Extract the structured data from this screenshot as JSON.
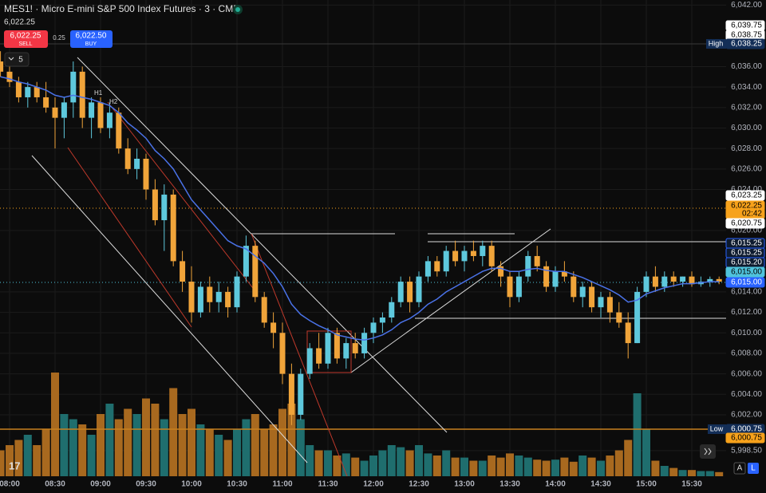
{
  "toolbar": {
    "symbol": "MES1! · Micro E-mini S&P 500 Index Futures · 3 · CME",
    "last": "6,022.25",
    "sell_price": "6,022.25",
    "sell": "SELL",
    "spread": "0.25",
    "buy_price": "6,022.50",
    "buy": "BUY",
    "indicators": "5",
    "buttons": [
      "A",
      "L"
    ]
  },
  "annotations": [
    "H1",
    "H2"
  ],
  "price_tags": [
    {
      "label": "6,039.75",
      "color": "#ffffff"
    },
    {
      "label": "6,038.75",
      "color": "#ffffff"
    },
    {
      "label": "6,038.25",
      "color": "#132e57"
    },
    {
      "label": "6,023.25",
      "color": "#ffffff"
    },
    {
      "label": "6,022.25",
      "color": "#f7a21b"
    },
    {
      "label": "02:42",
      "color": "#f7a21b"
    },
    {
      "label": "6,020.75",
      "color": "#ffffff"
    },
    {
      "label": "6,015.25",
      "color": "#0d1a2e"
    },
    {
      "label": "6,015.25",
      "color": "#0d1a2e"
    },
    {
      "label": "6,015.20",
      "color": "#0d1a2e"
    },
    {
      "label": "6,015.00",
      "color": "#4fc3dc"
    },
    {
      "label": "6,015.00",
      "color": "#2962ff"
    },
    {
      "label": "6,000.75",
      "color": "#132e57"
    },
    {
      "label": "6,000.75",
      "color": "#f7a21b"
    }
  ],
  "extreme_tags": [
    "High",
    "Low"
  ],
  "chart_data": {
    "type": "candlestick",
    "up_color": "#5ec8dc",
    "down_color": "#f0a43a",
    "volume_up_color": "#1f6e6e",
    "volume_down_color": "#a8691f",
    "ma_color": "#4a72e8",
    "ylim": [
      5996,
      6042.5
    ],
    "yticks": [
      {
        "value": 6042,
        "label": "6,042.00"
      },
      {
        "value": 6036,
        "label": "6,036.00"
      },
      {
        "value": 6034,
        "label": "6,034.00"
      },
      {
        "value": 6032,
        "label": "6,032.00"
      },
      {
        "value": 6030,
        "label": "6,030.00"
      },
      {
        "value": 6028,
        "label": "6,028.00"
      },
      {
        "value": 6026,
        "label": "6,026.00"
      },
      {
        "value": 6024,
        "label": "6,024.00"
      },
      {
        "value": 6020,
        "label": "6,020.00"
      },
      {
        "value": 6014,
        "label": "6,014.00"
      },
      {
        "value": 6012,
        "label": "6,012.00"
      },
      {
        "value": 6010,
        "label": "6,010.00"
      },
      {
        "value": 6008,
        "label": "6,008.00"
      },
      {
        "value": 6006,
        "label": "6,006.00"
      },
      {
        "value": 6004,
        "label": "6,004.00"
      },
      {
        "value": 6002,
        "label": "6,002.00"
      },
      {
        "value": 5998.5,
        "label": "5,998.50"
      }
    ],
    "vlim": [
      0,
      100
    ],
    "categories": [
      null,
      "08:00",
      null,
      null,
      null,
      null,
      "08:30",
      null,
      null,
      null,
      null,
      "09:00",
      null,
      null,
      null,
      null,
      "09:30",
      null,
      null,
      null,
      null,
      "10:00",
      null,
      null,
      null,
      null,
      "10:30",
      null,
      null,
      null,
      null,
      "11:00",
      null,
      null,
      null,
      null,
      "11:30",
      null,
      null,
      null,
      null,
      "12:00",
      null,
      null,
      null,
      null,
      "12:30",
      null,
      null,
      null,
      null,
      "13:00",
      null,
      null,
      null,
      null,
      "13:30",
      null,
      null,
      null,
      null,
      "14:00",
      null,
      null,
      null,
      null,
      "14:30",
      null,
      null,
      null,
      null,
      "15:00",
      null,
      null,
      null,
      null,
      "15:30",
      null,
      null,
      null
    ],
    "ohlc": [
      [
        6036.5,
        6037.5,
        6035,
        6035.5
      ],
      [
        6035.5,
        6036,
        6034,
        6034.5
      ],
      [
        6034.5,
        6035,
        6032.5,
        6033
      ],
      [
        6033,
        6034.5,
        6032,
        6034
      ],
      [
        6034,
        6034.5,
        6032.5,
        6033
      ],
      [
        6033,
        6034.5,
        6031.5,
        6032
      ],
      [
        6032,
        6033,
        6028,
        6031
      ],
      [
        6031,
        6033,
        6029,
        6032.5
      ],
      [
        6032.5,
        6036.5,
        6031,
        6035.5
      ],
      [
        6035.5,
        6036,
        6030,
        6031
      ],
      [
        6031,
        6033,
        6029,
        6032.5
      ],
      [
        6032.5,
        6033,
        6029.5,
        6030
      ],
      [
        6030,
        6032.5,
        6029,
        6031.5
      ],
      [
        6031.5,
        6032,
        6027.5,
        6028
      ],
      [
        6028,
        6029,
        6025.5,
        6026
      ],
      [
        6026,
        6028,
        6025,
        6027
      ],
      [
        6027,
        6027.5,
        6023,
        6024
      ],
      [
        6024,
        6025,
        6020.5,
        6021
      ],
      [
        6021,
        6024.5,
        6018,
        6023.5
      ],
      [
        6023.5,
        6024,
        6016.5,
        6017
      ],
      [
        6017,
        6018,
        6014,
        6015
      ],
      [
        6015,
        6016.5,
        6011,
        6012
      ],
      [
        6012,
        6015,
        6011.5,
        6014.5
      ],
      [
        6014.5,
        6015.5,
        6012,
        6013
      ],
      [
        6013,
        6015,
        6012,
        6014
      ],
      [
        6014,
        6014.5,
        6011.5,
        6012.5
      ],
      [
        6012.5,
        6016,
        6012,
        6015.5
      ],
      [
        6015.5,
        6019.5,
        6015,
        6018.5
      ],
      [
        6018.5,
        6019,
        6013,
        6013.5
      ],
      [
        6013.5,
        6014,
        6010.5,
        6011
      ],
      [
        6011,
        6012,
        6008.5,
        6010
      ],
      [
        6010,
        6011,
        6005,
        6006
      ],
      [
        6006,
        6007,
        6001,
        6002
      ],
      [
        6002,
        6006.5,
        6001.5,
        6006
      ],
      [
        6006,
        6009,
        6005.5,
        6008.5
      ],
      [
        6008.5,
        6010,
        6006.5,
        6007
      ],
      [
        6007,
        6010.5,
        6006.5,
        6010
      ],
      [
        6010,
        6010.5,
        6007,
        6007.5
      ],
      [
        6007.5,
        6009.5,
        6006.5,
        6009
      ],
      [
        6009,
        6010,
        6007.5,
        6008
      ],
      [
        6008,
        6010.5,
        6007.5,
        6010
      ],
      [
        6010,
        6011.5,
        6009,
        6011
      ],
      [
        6011,
        6012,
        6010,
        6011.5
      ],
      [
        6011.5,
        6013.5,
        6011,
        6013
      ],
      [
        6013,
        6015.5,
        6012.5,
        6015
      ],
      [
        6015,
        6015.5,
        6012,
        6013
      ],
      [
        6013,
        6016,
        6012.5,
        6015.5
      ],
      [
        6015.5,
        6017.5,
        6015,
        6017
      ],
      [
        6017,
        6017.5,
        6015.5,
        6016
      ],
      [
        6016,
        6018.5,
        6015.5,
        6018
      ],
      [
        6018,
        6019,
        6016.5,
        6017
      ],
      [
        6017,
        6018.5,
        6016,
        6018
      ],
      [
        6018,
        6019,
        6017,
        6017.5
      ],
      [
        6017.5,
        6019,
        6016.5,
        6018.5
      ],
      [
        6018.5,
        6019,
        6016,
        6016.5
      ],
      [
        6016.5,
        6017,
        6014.5,
        6015.5
      ],
      [
        6015.5,
        6016,
        6012.5,
        6013.5
      ],
      [
        6013.5,
        6016,
        6013,
        6015.5
      ],
      [
        6015.5,
        6018,
        6015,
        6017.5
      ],
      [
        6017.5,
        6018.5,
        6016,
        6016.5
      ],
      [
        6016.5,
        6017,
        6014,
        6014.5
      ],
      [
        6014.5,
        6016.5,
        6014,
        6016
      ],
      [
        6016,
        6017,
        6015,
        6015.5
      ],
      [
        6015.5,
        6016,
        6013,
        6013.5
      ],
      [
        6013.5,
        6015,
        6012.5,
        6014.5
      ],
      [
        6014.5,
        6015,
        6012,
        6012.5
      ],
      [
        6012.5,
        6014,
        6011.5,
        6013.5
      ],
      [
        6013.5,
        6014,
        6011,
        6012
      ],
      [
        6012,
        6013,
        6010.5,
        6011
      ],
      [
        6011,
        6012,
        6007.5,
        6009
      ],
      [
        6009,
        6014.5,
        6009,
        6014
      ],
      [
        6014,
        6016,
        6013.5,
        6015.5
      ],
      [
        6015.5,
        6016.5,
        6014,
        6014.5
      ],
      [
        6014.5,
        6016,
        6014,
        6015.5
      ],
      [
        6015.5,
        6016,
        6014.5,
        6015
      ],
      [
        6015,
        6015.5,
        6014.5,
        6015.5
      ],
      [
        6015.5,
        6016,
        6014.5,
        6014.75
      ],
      [
        6014.75,
        6015.5,
        6014.5,
        6015
      ],
      [
        6015,
        6015.5,
        6014.5,
        6015.25
      ],
      [
        6015.25,
        6015.5,
        6014.75,
        6015
      ]
    ],
    "volume": [
      25,
      30,
      35,
      40,
      30,
      45,
      100,
      60,
      55,
      50,
      40,
      60,
      70,
      55,
      65,
      60,
      75,
      70,
      55,
      85,
      60,
      65,
      50,
      45,
      40,
      35,
      45,
      55,
      60,
      45,
      50,
      65,
      70,
      55,
      30,
      25,
      25,
      20,
      22,
      18,
      15,
      20,
      25,
      30,
      28,
      25,
      30,
      22,
      20,
      25,
      18,
      18,
      15,
      15,
      20,
      18,
      22,
      20,
      18,
      16,
      15,
      16,
      18,
      14,
      20,
      18,
      15,
      20,
      25,
      35,
      80,
      45,
      15,
      10,
      8,
      6,
      6,
      5,
      5,
      4
    ],
    "ma": [
      6035,
      6034.8,
      6034.5,
      6034.3,
      6034,
      6033.7,
      6033.2,
      6033,
      6033.2,
      6033,
      6032.8,
      6032.5,
      6032.2,
      6031.5,
      6030.5,
      6029.8,
      6029,
      6027.8,
      6027,
      6026,
      6024.5,
      6023,
      6022,
      6021,
      6020,
      6019,
      6018.5,
      6018.2,
      6017.5,
      6016.8,
      6015.8,
      6014.5,
      6012.8,
      6011.8,
      6011.2,
      6010.7,
      6010.3,
      6009.8,
      6009.6,
      6009.4,
      6009.3,
      6009.5,
      6009.8,
      6010.3,
      6011,
      6011.4,
      6012,
      6012.8,
      6013.3,
      6014,
      6014.5,
      6015,
      6015.5,
      6016,
      6016.3,
      6016.3,
      6016,
      6016,
      6016.2,
      6016.3,
      6016.1,
      6016,
      6016,
      6015.7,
      6015.4,
      6015,
      6014.6,
      6014.2,
      6013.7,
      6013,
      6013.2,
      6013.8,
      6014.1,
      6014.4,
      6014.6,
      6014.8,
      6014.8,
      6014.9,
      6015,
      6015
    ]
  }
}
